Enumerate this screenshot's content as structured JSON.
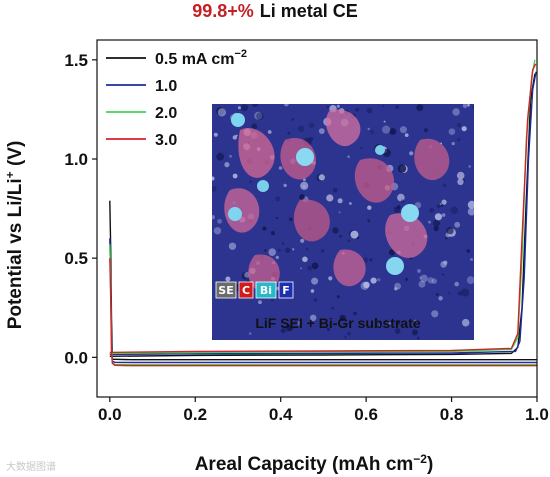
{
  "chart_data": {
    "type": "line",
    "title_highlight": "99.8+%",
    "title_rest": "Li metal CE",
    "xlabel": "Areal Capacity (mAh cm",
    "xlabel_sup": "−2",
    "xlabel_close": ")",
    "ylabel": "Potential vs Li/Li",
    "ylabel_sup": "+",
    "ylabel_close": " (V)",
    "xlim": [
      -0.03,
      1.0
    ],
    "ylim": [
      -0.2,
      1.6
    ],
    "x_ticks": [
      "0.0",
      "0.2",
      "0.4",
      "0.6",
      "0.8",
      "1.0"
    ],
    "y_ticks": [
      "0.0",
      "0.5",
      "1.0",
      "1.5"
    ],
    "legend_location": "top-left",
    "series": [
      {
        "name": "0.5 mA cm",
        "name_sup": "−2",
        "color": "#111111",
        "plating": [
          [
            0.0,
            0.79
          ],
          [
            0.002,
            0.55
          ],
          [
            0.004,
            0.2
          ],
          [
            0.006,
            -0.01
          ],
          [
            0.012,
            -0.01
          ],
          [
            0.05,
            -0.012
          ],
          [
            0.2,
            -0.012
          ],
          [
            0.5,
            -0.012
          ],
          [
            0.8,
            -0.012
          ],
          [
            1.0,
            -0.012
          ]
        ],
        "stripping": [
          [
            0.0,
            0.005
          ],
          [
            0.2,
            0.01
          ],
          [
            0.5,
            0.012
          ],
          [
            0.8,
            0.015
          ],
          [
            0.94,
            0.02
          ],
          [
            0.955,
            0.05
          ],
          [
            0.965,
            0.25
          ],
          [
            0.975,
            0.8
          ],
          [
            0.985,
            1.3
          ],
          [
            0.995,
            1.43
          ]
        ]
      },
      {
        "name": "1.0",
        "color": "#1a2d9e",
        "plating": [
          [
            0.0,
            0.6
          ],
          [
            0.002,
            0.4
          ],
          [
            0.004,
            0.1
          ],
          [
            0.006,
            -0.02
          ],
          [
            0.012,
            -0.025
          ],
          [
            0.05,
            -0.026
          ],
          [
            0.2,
            -0.026
          ],
          [
            0.5,
            -0.026
          ],
          [
            0.8,
            -0.026
          ],
          [
            1.0,
            -0.026
          ]
        ],
        "stripping": [
          [
            0.0,
            0.015
          ],
          [
            0.2,
            0.018
          ],
          [
            0.5,
            0.02
          ],
          [
            0.8,
            0.022
          ],
          [
            0.95,
            0.03
          ],
          [
            0.96,
            0.08
          ],
          [
            0.97,
            0.4
          ],
          [
            0.98,
            1.0
          ],
          [
            0.99,
            1.35
          ],
          [
            0.998,
            1.44
          ]
        ]
      },
      {
        "name": "2.0",
        "color": "#3fd64a",
        "plating": [
          [
            0.0,
            0.57
          ],
          [
            0.002,
            0.35
          ],
          [
            0.004,
            0.05
          ],
          [
            0.006,
            -0.03
          ],
          [
            0.012,
            -0.035
          ],
          [
            0.05,
            -0.037
          ],
          [
            0.2,
            -0.037
          ],
          [
            0.5,
            -0.037
          ],
          [
            0.8,
            -0.037
          ],
          [
            1.0,
            -0.037
          ]
        ],
        "stripping": [
          [
            0.0,
            0.02
          ],
          [
            0.2,
            0.025
          ],
          [
            0.5,
            0.028
          ],
          [
            0.8,
            0.03
          ],
          [
            0.94,
            0.04
          ],
          [
            0.955,
            0.1
          ],
          [
            0.965,
            0.5
          ],
          [
            0.975,
            1.1
          ],
          [
            0.988,
            1.42
          ],
          [
            0.995,
            1.5
          ]
        ]
      },
      {
        "name": "3.0",
        "color": "#d2232a",
        "plating": [
          [
            0.0,
            0.5
          ],
          [
            0.002,
            0.3
          ],
          [
            0.004,
            0.02
          ],
          [
            0.006,
            -0.03
          ],
          [
            0.012,
            -0.04
          ],
          [
            0.05,
            -0.042
          ],
          [
            0.2,
            -0.042
          ],
          [
            0.5,
            -0.042
          ],
          [
            0.8,
            -0.042
          ],
          [
            1.0,
            -0.042
          ]
        ],
        "stripping": [
          [
            0.0,
            0.025
          ],
          [
            0.2,
            0.03
          ],
          [
            0.5,
            0.032
          ],
          [
            0.8,
            0.035
          ],
          [
            0.94,
            0.045
          ],
          [
            0.955,
            0.12
          ],
          [
            0.965,
            0.6
          ],
          [
            0.978,
            1.2
          ],
          [
            0.99,
            1.45
          ],
          [
            0.997,
            1.48
          ]
        ]
      }
    ]
  },
  "inset": {
    "caption": "LiF SEI + Bi-Gr substrate",
    "element_labels": [
      {
        "text": "SE",
        "bg": "#6b6b6b",
        "fg": "#ffffff"
      },
      {
        "text": "C",
        "bg": "#d21b1b",
        "fg": "#ffffff"
      },
      {
        "text": "Bi",
        "bg": "#28b8c8",
        "fg": "#ffffff"
      },
      {
        "text": "F",
        "bg": "#1d2fb0",
        "fg": "#ffffff"
      }
    ]
  },
  "watermark": "大数据图谱"
}
